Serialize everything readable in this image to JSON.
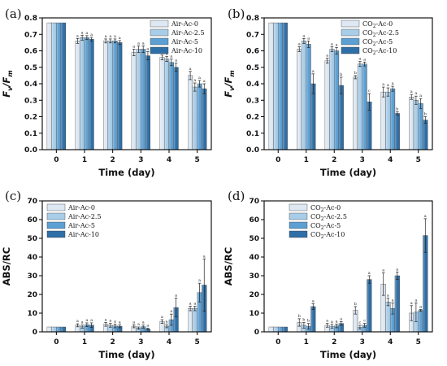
{
  "colors": [
    "#dde8f3",
    "#a8cde9",
    "#5b9fd3",
    "#2e6fa7"
  ],
  "chart_data": [
    {
      "panel_label": "(a)",
      "type": "bar",
      "categories": [
        "0",
        "1",
        "2",
        "3",
        "4",
        "5"
      ],
      "xlabel": "Time (day)",
      "ylabel": "Fv/Fm",
      "ylim": [
        0,
        0.8
      ],
      "yticks": [
        "0.0",
        "0.1",
        "0.2",
        "0.3",
        "0.4",
        "0.5",
        "0.6",
        "0.7",
        "0.8"
      ],
      "legend_position": "top-right",
      "series": [
        {
          "name": "Air-Ac-0",
          "values": [
            0.77,
            0.66,
            0.66,
            0.59,
            0.56,
            0.45
          ],
          "errors": [
            0,
            0.015,
            0.012,
            0.02,
            0.015,
            0.025
          ],
          "labels": [
            "",
            "a",
            "a",
            "a",
            "a",
            "a"
          ]
        },
        {
          "name": "Air-Ac-2.5",
          "values": [
            0.77,
            0.68,
            0.66,
            0.61,
            0.55,
            0.38
          ],
          "errors": [
            0,
            0.015,
            0.012,
            0.02,
            0.015,
            0.025
          ],
          "labels": [
            "",
            "a",
            "a",
            "a",
            "a",
            "a"
          ]
        },
        {
          "name": "Air-Ac-5",
          "values": [
            0.77,
            0.68,
            0.66,
            0.61,
            0.53,
            0.4
          ],
          "errors": [
            0,
            0.012,
            0.012,
            0.02,
            0.02,
            0.02
          ],
          "labels": [
            "",
            "a",
            "a",
            "a",
            "a",
            "a"
          ]
        },
        {
          "name": "Air-Ac-10",
          "values": [
            0.77,
            0.67,
            0.65,
            0.57,
            0.5,
            0.37
          ],
          "errors": [
            0,
            0.012,
            0.012,
            0.025,
            0.025,
            0.03
          ],
          "labels": [
            "",
            "a",
            "a",
            "a",
            "a",
            "a"
          ]
        }
      ]
    },
    {
      "panel_label": "(b)",
      "type": "bar",
      "categories": [
        "0",
        "1",
        "2",
        "3",
        "4",
        "5"
      ],
      "xlabel": "Time (day)",
      "ylabel": "Fv/Fm",
      "ylim": [
        0,
        0.8
      ],
      "yticks": [
        "0.0",
        "0.1",
        "0.2",
        "0.3",
        "0.4",
        "0.5",
        "0.6",
        "0.7",
        "0.8"
      ],
      "legend_position": "top-right",
      "series": [
        {
          "name": "CO2-Ac-0",
          "values": [
            0.77,
            0.61,
            0.54,
            0.44,
            0.35,
            0.32
          ],
          "errors": [
            0,
            0.015,
            0.015,
            0.01,
            0.03,
            0.015
          ],
          "labels": [
            "",
            "a",
            "a",
            "b",
            "a",
            "a"
          ]
        },
        {
          "name": "CO2-Ac-2.5",
          "values": [
            0.77,
            0.66,
            0.61,
            0.52,
            0.35,
            0.3
          ],
          "errors": [
            0,
            0.015,
            0.015,
            0.015,
            0.025,
            0.025
          ],
          "labels": [
            "",
            "a",
            "a",
            "a",
            "a",
            "a"
          ]
        },
        {
          "name": "CO2-Ac-5",
          "values": [
            0.77,
            0.64,
            0.6,
            0.52,
            0.37,
            0.28
          ],
          "errors": [
            0,
            0.02,
            0.02,
            0.012,
            0.015,
            0.03
          ],
          "labels": [
            "",
            "a",
            "a",
            "a",
            "a",
            "a"
          ]
        },
        {
          "name": "CO2-Ac-10",
          "values": [
            0.77,
            0.4,
            0.39,
            0.29,
            0.22,
            0.18
          ],
          "errors": [
            0,
            0.06,
            0.05,
            0.05,
            0.01,
            0.02
          ],
          "labels": [
            "",
            "a",
            "b",
            "c",
            "b",
            "b"
          ]
        }
      ]
    },
    {
      "panel_label": "(c)",
      "type": "bar",
      "categories": [
        "0",
        "1",
        "2",
        "3",
        "4",
        "5"
      ],
      "xlabel": "Time (day)",
      "ylabel": "ABS/RC",
      "ylim": [
        0,
        70
      ],
      "yticks": [
        "0",
        "10",
        "20",
        "30",
        "40",
        "50",
        "60",
        "70"
      ],
      "legend_position": "top-left",
      "series": [
        {
          "name": "Air-Ac-0",
          "values": [
            2.6,
            3.5,
            4.0,
            3.0,
            5.5,
            12.5
          ],
          "errors": [
            0,
            0.8,
            1.0,
            0.8,
            1.0,
            1.2
          ],
          "labels": [
            "",
            "a",
            "a",
            "a",
            "a",
            "a"
          ]
        },
        {
          "name": "Air-Ac-2.5",
          "values": [
            2.6,
            2.8,
            3.5,
            2.0,
            3.0,
            12.5
          ],
          "errors": [
            0,
            0.8,
            1.0,
            0.6,
            0.8,
            1.2
          ],
          "labels": [
            "",
            "a",
            "a",
            "a",
            "b",
            "a"
          ]
        },
        {
          "name": "Air-Ac-5",
          "values": [
            2.6,
            3.8,
            3.2,
            2.8,
            6.5,
            21.0
          ],
          "errors": [
            0,
            1.0,
            1.0,
            0.8,
            3.0,
            5.0
          ],
          "labels": [
            "",
            "a",
            "a",
            "a",
            "a",
            "a"
          ]
        },
        {
          "name": "Air-Ac-10",
          "values": [
            2.6,
            3.6,
            3.0,
            1.5,
            13.0,
            25.0
          ],
          "errors": [
            0,
            1.2,
            0.8,
            0.5,
            5.0,
            14.0
          ],
          "labels": [
            "",
            "a",
            "a",
            "a",
            "a",
            "a"
          ]
        }
      ]
    },
    {
      "panel_label": "(d)",
      "type": "bar",
      "categories": [
        "0",
        "1",
        "2",
        "3",
        "4",
        "5"
      ],
      "xlabel": "Time (day)",
      "ylabel": "ABS/RC",
      "ylim": [
        0,
        70
      ],
      "yticks": [
        "0",
        "10",
        "20",
        "30",
        "40",
        "50",
        "60",
        "70"
      ],
      "legend_position": "top-left",
      "series": [
        {
          "name": "CO2-Ac-0",
          "values": [
            2.6,
            5.0,
            3.5,
            11.5,
            25.5,
            10.0
          ],
          "errors": [
            0,
            2.0,
            1.0,
            2.0,
            6.0,
            4.0
          ],
          "labels": [
            "",
            "b",
            "a",
            "b",
            "a",
            "a"
          ]
        },
        {
          "name": "CO2-Ac-2.5",
          "values": [
            2.6,
            3.5,
            3.0,
            2.5,
            16.0,
            10.5
          ],
          "errors": [
            0,
            1.5,
            1.0,
            1.0,
            2.0,
            5.0
          ],
          "labels": [
            "",
            "b",
            "a",
            "c",
            "a",
            "a"
          ]
        },
        {
          "name": "CO2-Ac-5",
          "values": [
            2.6,
            3.0,
            3.2,
            3.5,
            12.5,
            11.5
          ],
          "errors": [
            0,
            1.5,
            1.0,
            1.0,
            3.0,
            0.5
          ],
          "labels": [
            "",
            "b",
            "a",
            "c",
            "a",
            "a"
          ]
        },
        {
          "name": "CO2-Ac-10",
          "values": [
            2.6,
            13.5,
            4.5,
            28.0,
            30.0,
            51.5
          ],
          "errors": [
            0,
            1.5,
            1.0,
            2.0,
            2.0,
            9.0
          ],
          "labels": [
            "",
            "a",
            "a",
            "a",
            "a",
            "a"
          ]
        }
      ]
    }
  ]
}
